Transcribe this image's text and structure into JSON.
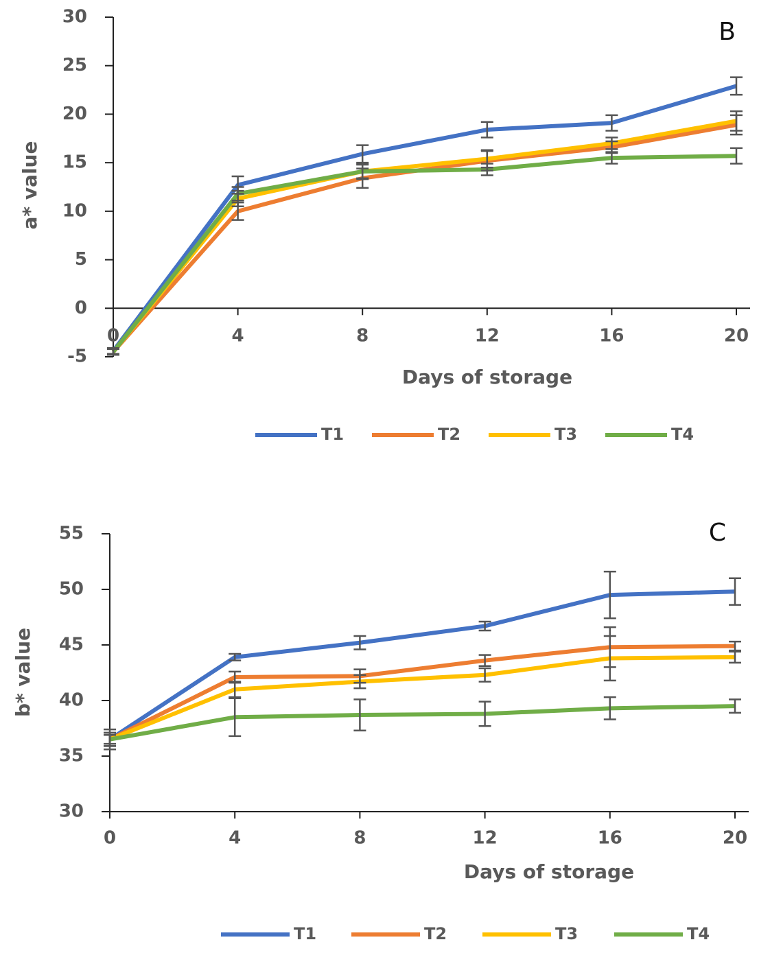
{
  "chart_data": [
    {
      "type": "line",
      "panel_label": "B",
      "x_label": "Days of storage",
      "y_label": "a* value",
      "x": [
        0,
        4,
        8,
        12,
        16,
        20
      ],
      "xlim": [
        0,
        20
      ],
      "xticks": [
        0,
        4,
        8,
        12,
        16,
        20
      ],
      "ylim": [
        -5,
        30
      ],
      "yticks": [
        -5,
        0,
        5,
        10,
        15,
        20,
        25,
        30
      ],
      "series": [
        {
          "name": "T1",
          "color": "#4472c4",
          "values": [
            -4.4,
            12.7,
            15.9,
            18.4,
            19.1,
            22.9
          ],
          "errors": [
            0.3,
            0.9,
            0.9,
            0.8,
            0.8,
            0.9
          ]
        },
        {
          "name": "T2",
          "color": "#ed7d31",
          "values": [
            -4.5,
            10.0,
            13.4,
            15.2,
            16.6,
            18.9
          ],
          "errors": [
            0.3,
            0.9,
            1.0,
            1.0,
            0.6,
            1.0
          ]
        },
        {
          "name": "T3",
          "color": "#ffc000",
          "values": [
            -4.5,
            11.3,
            14.1,
            15.4,
            17.0,
            19.3
          ],
          "errors": [
            0.3,
            0.8,
            0.8,
            0.9,
            0.6,
            1.0
          ]
        },
        {
          "name": "T4",
          "color": "#70ad47",
          "values": [
            -4.5,
            11.8,
            14.1,
            14.3,
            15.5,
            15.7
          ],
          "errors": [
            0.3,
            0.7,
            0.7,
            0.6,
            0.6,
            0.8
          ]
        }
      ]
    },
    {
      "type": "line",
      "panel_label": "C",
      "x_label": "Days of storage",
      "y_label": "b* value",
      "x": [
        0,
        4,
        8,
        12,
        16,
        20
      ],
      "xlim": [
        0,
        20
      ],
      "xticks": [
        0,
        4,
        8,
        12,
        16,
        20
      ],
      "ylim": [
        30,
        55
      ],
      "yticks": [
        30,
        35,
        40,
        45,
        50,
        55
      ],
      "series": [
        {
          "name": "T1",
          "color": "#4472c4",
          "values": [
            36.5,
            43.9,
            45.2,
            46.7,
            49.5,
            49.8
          ],
          "errors": [
            0.9,
            0.3,
            0.6,
            0.4,
            2.1,
            1.2
          ]
        },
        {
          "name": "T2",
          "color": "#ed7d31",
          "values": [
            36.5,
            42.1,
            42.2,
            43.6,
            44.8,
            44.9
          ],
          "errors": [
            0.6,
            0.5,
            0.6,
            0.5,
            1.8,
            0.4
          ]
        },
        {
          "name": "T3",
          "color": "#ffc000",
          "values": [
            36.5,
            41.0,
            41.7,
            42.3,
            43.8,
            43.9
          ],
          "errors": [
            0.6,
            0.7,
            0.6,
            0.6,
            2.0,
            0.5
          ]
        },
        {
          "name": "T4",
          "color": "#70ad47",
          "values": [
            36.5,
            38.5,
            38.7,
            38.8,
            39.3,
            39.5
          ],
          "errors": [
            0.4,
            1.7,
            1.4,
            1.1,
            1.0,
            0.6
          ]
        }
      ]
    }
  ]
}
